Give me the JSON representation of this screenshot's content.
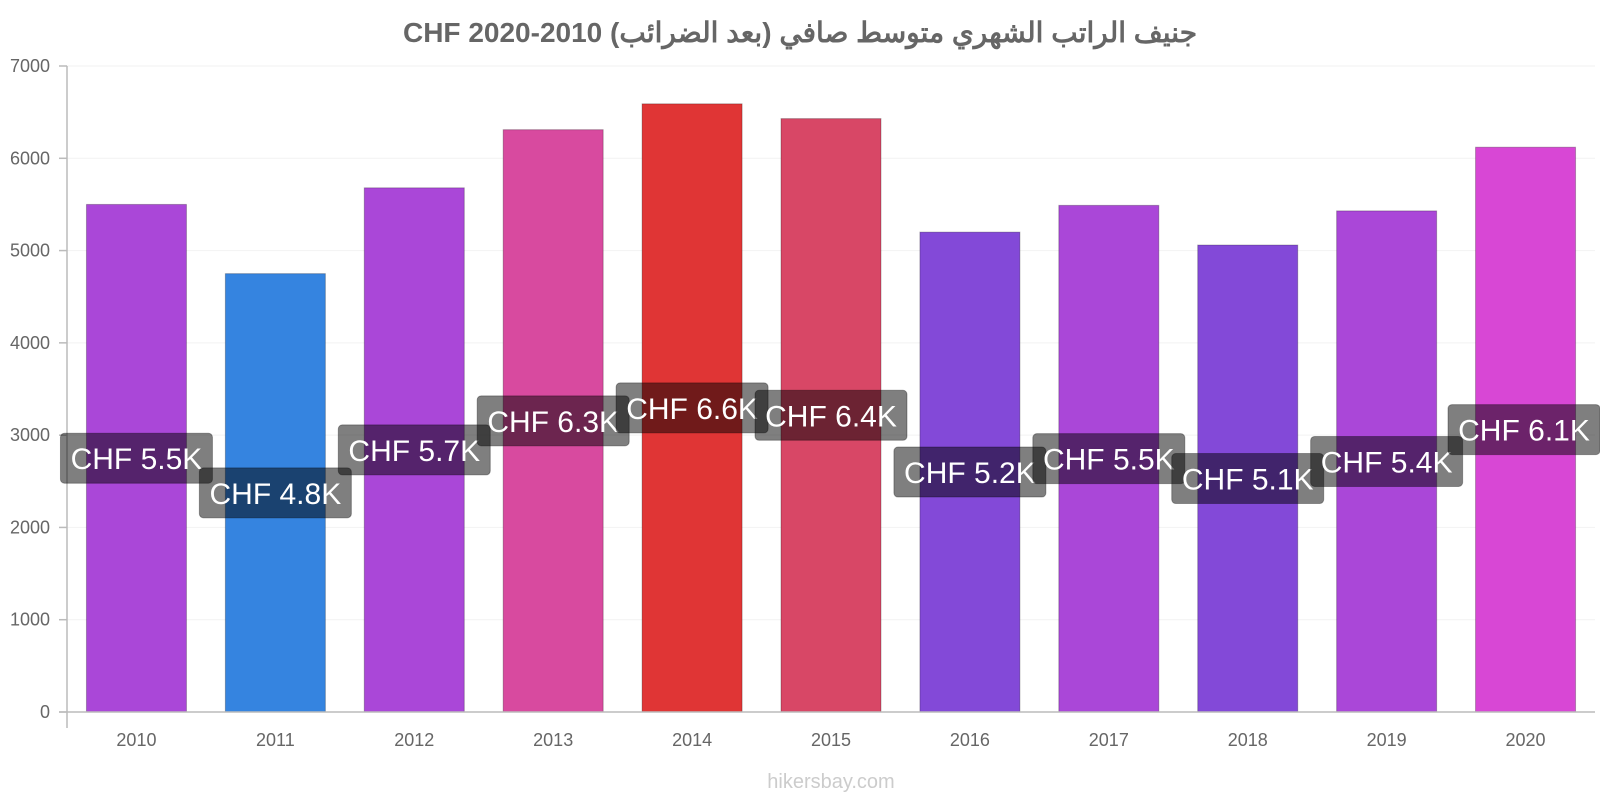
{
  "chart_data": {
    "type": "bar",
    "title": "جنيف الراتب الشهري متوسط صافي (بعد الضرائب) 2010-2020 CHF",
    "categories": [
      "2010",
      "2011",
      "2012",
      "2013",
      "2014",
      "2015",
      "2016",
      "2017",
      "2018",
      "2019",
      "2020"
    ],
    "values": [
      5500,
      4750,
      5680,
      6310,
      6590,
      6430,
      5200,
      5490,
      5060,
      5430,
      6120
    ],
    "data_labels": [
      "CHF 5.5K",
      "CHF 4.8K",
      "CHF 5.7K",
      "CHF 6.3K",
      "CHF 6.6K",
      "CHF 6.4K",
      "CHF 5.2K",
      "CHF 5.5K",
      "CHF 5.1K",
      "CHF 5.4K",
      "CHF 6.1K"
    ],
    "colors": [
      "#aa47d8",
      "#3584e0",
      "#aa47d8",
      "#d84a9f",
      "#e03535",
      "#d84766",
      "#8349d8",
      "#aa47d8",
      "#8349d8",
      "#aa47d8",
      "#d847d5"
    ],
    "ylim": [
      0,
      7000
    ],
    "yticks": [
      "0",
      "1000",
      "2000",
      "3000",
      "4000",
      "5000",
      "6000",
      "7000"
    ],
    "xlabel": "",
    "ylabel": "",
    "grid": true
  },
  "watermark": "hikersbay.com"
}
